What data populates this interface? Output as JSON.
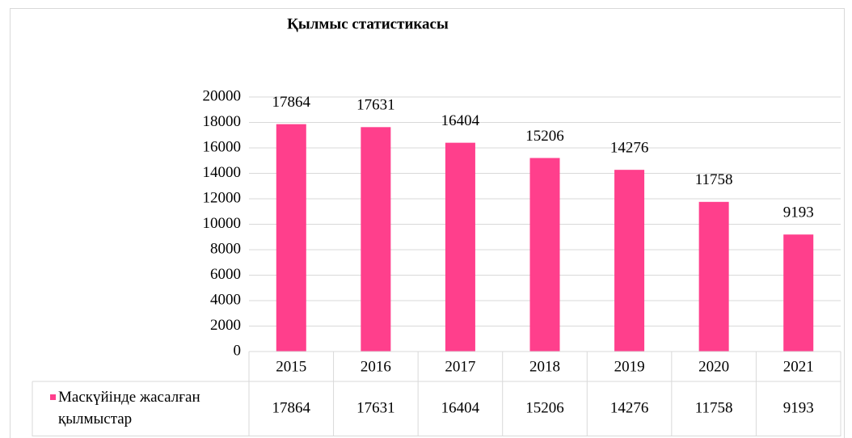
{
  "chart_data": {
    "type": "bar",
    "title": "Қылмыс статистикасы",
    "categories": [
      "2015",
      "2016",
      "2017",
      "2018",
      "2019",
      "2020",
      "2021"
    ],
    "series": [
      {
        "name": "Маскүйінде жасалған қылмыстар",
        "color": "#ff3f8c",
        "values": [
          17864,
          17631,
          16404,
          15206,
          14276,
          11758,
          9193
        ]
      }
    ],
    "ylim": [
      0,
      20000
    ],
    "yticks": [
      0,
      2000,
      4000,
      6000,
      8000,
      10000,
      12000,
      14000,
      16000,
      18000,
      20000
    ],
    "grid": true,
    "data_table": true
  }
}
